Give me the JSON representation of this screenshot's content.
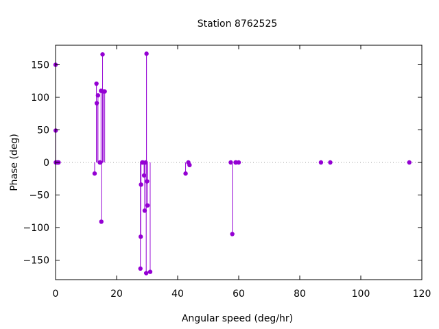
{
  "chart_data": {
    "type": "impulse-scatter",
    "title": "Station 8762525",
    "xlabel": "Angular speed (deg/hr)",
    "ylabel": "Phase (deg)",
    "xlim": [
      0,
      120
    ],
    "ylim": [
      -180,
      180
    ],
    "xticks": [
      0,
      20,
      40,
      60,
      80,
      100,
      120
    ],
    "yticks": [
      -150,
      -100,
      -50,
      0,
      50,
      100,
      150
    ],
    "zero_line": true,
    "grid": false,
    "series_color": "#9400d3",
    "points": [
      {
        "x": 0.0,
        "y": 150
      },
      {
        "x": 0.04,
        "y": 49
      },
      {
        "x": 0.08,
        "y": 0
      },
      {
        "x": 0.5,
        "y": 0
      },
      {
        "x": 0.8,
        "y": 0
      },
      {
        "x": 1.0,
        "y": 0
      },
      {
        "x": 12.8,
        "y": -17
      },
      {
        "x": 13.4,
        "y": 121
      },
      {
        "x": 13.5,
        "y": 91
      },
      {
        "x": 13.9,
        "y": 103
      },
      {
        "x": 14.5,
        "y": 0
      },
      {
        "x": 14.7,
        "y": 0
      },
      {
        "x": 14.9,
        "y": 110
      },
      {
        "x": 15.0,
        "y": -91
      },
      {
        "x": 15.4,
        "y": 166
      },
      {
        "x": 15.6,
        "y": 109
      },
      {
        "x": 16.1,
        "y": 109
      },
      {
        "x": 27.8,
        "y": -163
      },
      {
        "x": 27.9,
        "y": -114
      },
      {
        "x": 28.0,
        "y": -34
      },
      {
        "x": 28.4,
        "y": 0
      },
      {
        "x": 28.6,
        "y": 0
      },
      {
        "x": 29.0,
        "y": -20
      },
      {
        "x": 29.2,
        "y": -74
      },
      {
        "x": 29.5,
        "y": 0
      },
      {
        "x": 29.7,
        "y": -170
      },
      {
        "x": 29.8,
        "y": 167
      },
      {
        "x": 29.96,
        "y": -29
      },
      {
        "x": 30.1,
        "y": -66
      },
      {
        "x": 31.0,
        "y": -168
      },
      {
        "x": 42.6,
        "y": -17
      },
      {
        "x": 43.5,
        "y": 0
      },
      {
        "x": 43.9,
        "y": -4
      },
      {
        "x": 57.4,
        "y": 0
      },
      {
        "x": 57.9,
        "y": -110
      },
      {
        "x": 58.98,
        "y": 0
      },
      {
        "x": 59.1,
        "y": 0
      },
      {
        "x": 60.0,
        "y": 0
      },
      {
        "x": 86.95,
        "y": 0
      },
      {
        "x": 90.0,
        "y": 0
      },
      {
        "x": 115.9,
        "y": 0
      }
    ]
  }
}
